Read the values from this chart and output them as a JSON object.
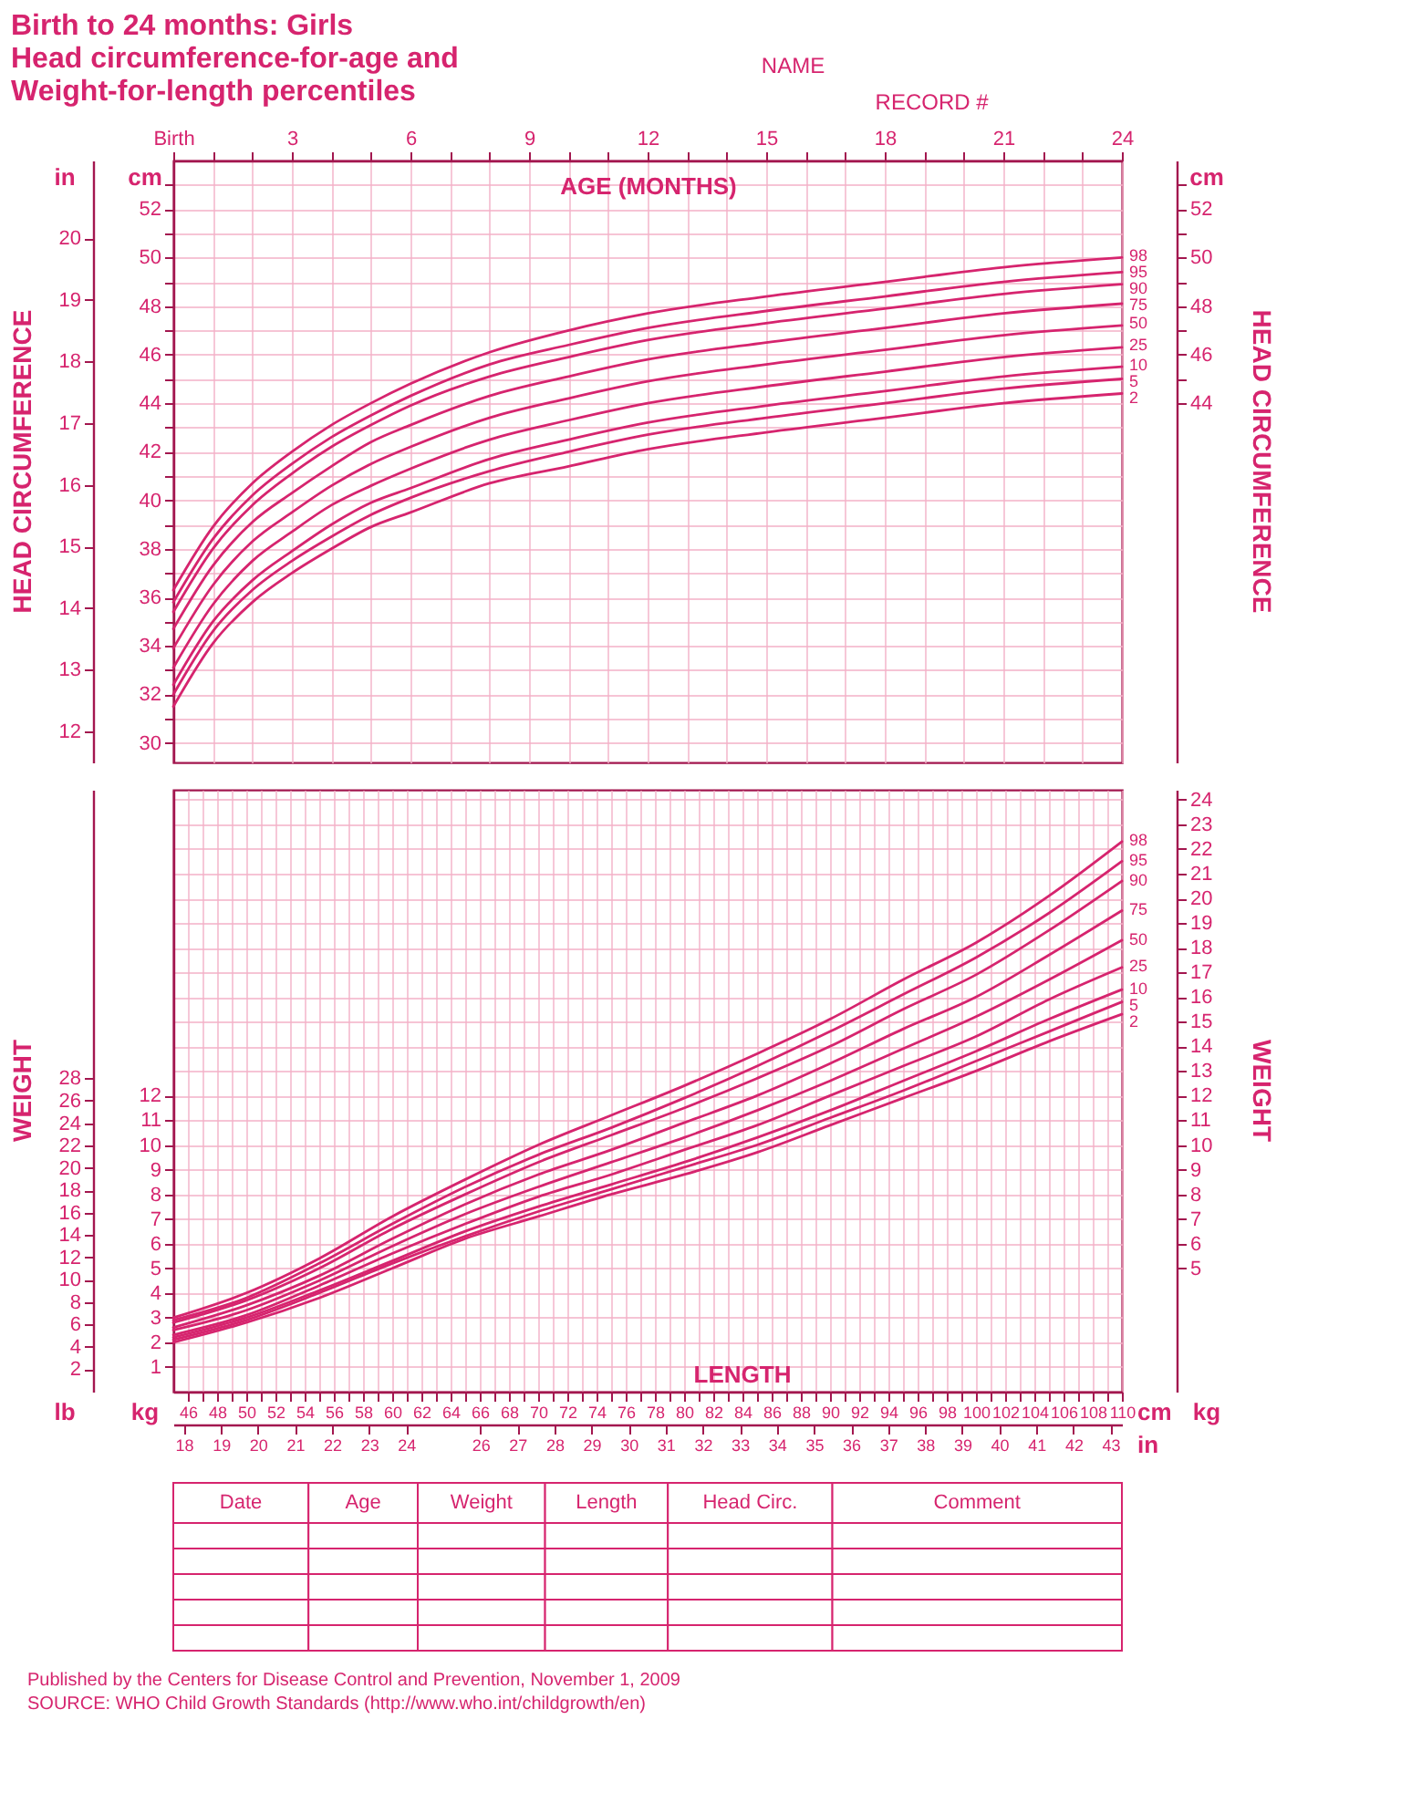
{
  "chart_data": [
    {
      "type": "line",
      "title": "Birth to 24 months: Girls\nHead circumference-for-age and\nWeight-for-length percentiles",
      "xlabel": "AGE (MONTHS)",
      "ylabel": "cm",
      "y2label": "cm",
      "y3label": "in",
      "annotations": [
        "HEAD CIRCUMFERENCE",
        "NAME",
        "RECORD #"
      ],
      "x": [
        0,
        1,
        2,
        3,
        4,
        5,
        6,
        8,
        10,
        12,
        15,
        18,
        21,
        24
      ],
      "series": [
        {
          "name": "2",
          "color": "#d6246e",
          "values": [
            31.5,
            34.1,
            35.8,
            37.0,
            38.0,
            38.9,
            39.5,
            40.7,
            41.4,
            42.1,
            42.8,
            43.4,
            44.0,
            44.4
          ]
        },
        {
          "name": "5",
          "color": "#d6246e",
          "values": [
            32.0,
            34.6,
            36.3,
            37.5,
            38.5,
            39.4,
            40.1,
            41.2,
            42.0,
            42.7,
            43.4,
            44.0,
            44.6,
            45.0
          ]
        },
        {
          "name": "10",
          "color": "#d6246e",
          "values": [
            32.4,
            35.0,
            36.7,
            37.9,
            39.0,
            39.9,
            40.5,
            41.7,
            42.5,
            43.2,
            43.9,
            44.5,
            45.1,
            45.5
          ]
        },
        {
          "name": "25",
          "color": "#d6246e",
          "values": [
            33.1,
            35.7,
            37.5,
            38.7,
            39.8,
            40.6,
            41.3,
            42.5,
            43.3,
            44.0,
            44.7,
            45.3,
            45.9,
            46.3
          ]
        },
        {
          "name": "50",
          "color": "#d6246e",
          "values": [
            33.9,
            36.5,
            38.3,
            39.5,
            40.6,
            41.5,
            42.2,
            43.4,
            44.2,
            44.9,
            45.6,
            46.2,
            46.8,
            47.2
          ]
        },
        {
          "name": "75",
          "color": "#d6246e",
          "values": [
            34.7,
            37.3,
            39.1,
            40.3,
            41.4,
            42.4,
            43.1,
            44.3,
            45.1,
            45.8,
            46.5,
            47.1,
            47.7,
            48.1
          ]
        },
        {
          "name": "90",
          "color": "#d6246e",
          "values": [
            35.4,
            38.0,
            39.8,
            41.1,
            42.2,
            43.1,
            43.9,
            45.1,
            45.9,
            46.6,
            47.3,
            47.9,
            48.5,
            48.9
          ]
        },
        {
          "name": "95",
          "color": "#d6246e",
          "values": [
            35.8,
            38.4,
            40.2,
            41.5,
            42.6,
            43.5,
            44.3,
            45.6,
            46.4,
            47.1,
            47.8,
            48.4,
            49.0,
            49.4
          ]
        },
        {
          "name": "98",
          "color": "#d6246e",
          "values": [
            36.3,
            38.9,
            40.7,
            42.0,
            43.1,
            44.0,
            44.8,
            46.1,
            47.0,
            47.7,
            48.4,
            49.0,
            49.6,
            50.0
          ]
        }
      ],
      "xlim": [
        0,
        24
      ],
      "xticks": [
        {
          "value": 0,
          "label": "Birth"
        },
        {
          "value": 1,
          "label": null
        },
        {
          "value": 2,
          "label": null
        },
        3,
        {
          "value": 4,
          "label": null
        },
        {
          "value": 5,
          "label": null
        },
        6,
        {
          "value": 7,
          "label": null
        },
        {
          "value": 8,
          "label": null
        },
        9,
        {
          "value": 10,
          "label": null
        },
        {
          "value": 11,
          "label": null
        },
        12,
        {
          "value": 13,
          "label": null
        },
        {
          "value": 14,
          "label": null
        },
        15,
        {
          "value": 16,
          "label": null
        },
        {
          "value": 17,
          "label": null
        },
        18,
        {
          "value": 19,
          "label": null
        },
        {
          "value": 20,
          "label": null
        },
        21,
        {
          "value": 22,
          "label": null
        },
        {
          "value": 23,
          "label": null
        },
        24
      ],
      "ylim": [
        29.2,
        54
      ],
      "yticks": [
        30,
        {
          "value": 31,
          "label": null
        },
        32,
        {
          "value": 33,
          "label": null
        },
        34,
        {
          "value": 35,
          "label": null
        },
        36,
        {
          "value": 37,
          "label": null
        },
        38,
        {
          "value": 39,
          "label": null
        },
        40,
        {
          "value": 41,
          "label": null
        },
        42,
        {
          "value": 43,
          "label": null
        },
        44,
        {
          "value": 45,
          "label": null
        },
        46,
        {
          "value": 47,
          "label": null
        },
        48,
        {
          "value": 49,
          "label": null
        },
        50,
        {
          "value": 51,
          "label": null
        },
        52,
        {
          "value": 53,
          "label": null
        }
      ],
      "y2lim": [
        29.2,
        54
      ],
      "y2ticks": [
        44,
        {
          "value": 45,
          "label": null
        },
        46,
        {
          "value": 47,
          "label": null
        },
        48,
        {
          "value": 49,
          "label": null
        },
        50,
        {
          "value": 51,
          "label": null
        },
        52,
        {
          "value": 53,
          "label": null
        }
      ],
      "y3lim": [
        11.496,
        21.26
      ],
      "y3ticks": [
        12,
        13,
        14,
        15,
        16,
        17,
        18,
        19,
        20
      ],
      "grid": true,
      "line_style": "solid"
    },
    {
      "type": "line",
      "xlabel": "cm",
      "x2label": "in",
      "ylabel": "kg",
      "y2label": "kg",
      "y3label": "lb",
      "annotations": [
        "WEIGHT",
        "LENGTH"
      ],
      "x": [
        45,
        50,
        55,
        60,
        65,
        70,
        75,
        80,
        85,
        90,
        95,
        100,
        105,
        110
      ],
      "series": [
        {
          "name": "2",
          "color": "#d6246e",
          "values": [
            2.0,
            2.8,
            3.8,
            5.0,
            6.2,
            7.1,
            8.0,
            8.8,
            9.7,
            10.8,
            11.9,
            13.0,
            14.2,
            15.3
          ]
        },
        {
          "name": "5",
          "color": "#d6246e",
          "values": [
            2.1,
            2.9,
            4.0,
            5.2,
            6.3,
            7.3,
            8.2,
            9.1,
            10.0,
            11.1,
            12.2,
            13.4,
            14.6,
            15.8
          ]
        },
        {
          "name": "10",
          "color": "#d6246e",
          "values": [
            2.2,
            3.0,
            4.1,
            5.3,
            6.5,
            7.5,
            8.4,
            9.3,
            10.3,
            11.4,
            12.6,
            13.8,
            15.1,
            16.3
          ]
        },
        {
          "name": "25",
          "color": "#d6246e",
          "values": [
            2.3,
            3.1,
            4.3,
            5.6,
            6.8,
            7.9,
            8.8,
            9.8,
            10.8,
            12.0,
            13.2,
            14.4,
            15.9,
            17.2
          ]
        },
        {
          "name": "50",
          "color": "#d6246e",
          "values": [
            2.5,
            3.3,
            4.5,
            5.9,
            7.2,
            8.3,
            9.3,
            10.3,
            11.4,
            12.6,
            13.9,
            15.2,
            16.7,
            18.3
          ]
        },
        {
          "name": "75",
          "color": "#d6246e",
          "values": [
            2.6,
            3.5,
            4.7,
            6.2,
            7.6,
            8.8,
            9.8,
            10.9,
            12.0,
            13.3,
            14.7,
            16.0,
            17.7,
            19.5
          ]
        },
        {
          "name": "90",
          "color": "#d6246e",
          "values": [
            2.8,
            3.7,
            5.0,
            6.6,
            8.0,
            9.3,
            10.4,
            11.5,
            12.7,
            14.0,
            15.5,
            16.9,
            18.7,
            20.7
          ]
        },
        {
          "name": "95",
          "color": "#d6246e",
          "values": [
            2.9,
            3.8,
            5.2,
            6.8,
            8.3,
            9.6,
            10.7,
            11.9,
            13.2,
            14.6,
            16.1,
            17.6,
            19.4,
            21.5
          ]
        },
        {
          "name": "98",
          "color": "#d6246e",
          "values": [
            3.0,
            4.0,
            5.4,
            7.1,
            8.6,
            10.0,
            11.2,
            12.4,
            13.7,
            15.1,
            16.7,
            18.2,
            20.1,
            22.3
          ]
        }
      ],
      "xlim": [
        45,
        110
      ],
      "xticks": [
        46,
        {
          "value": 47,
          "label": null
        },
        48,
        {
          "value": 49,
          "label": null
        },
        50,
        {
          "value": 51,
          "label": null
        },
        52,
        {
          "value": 53,
          "label": null
        },
        54,
        {
          "value": 55,
          "label": null
        },
        56,
        {
          "value": 57,
          "label": null
        },
        58,
        {
          "value": 59,
          "label": null
        },
        60,
        {
          "value": 61,
          "label": null
        },
        62,
        {
          "value": 63,
          "label": null
        },
        64,
        {
          "value": 65,
          "label": null
        },
        66,
        {
          "value": 67,
          "label": null
        },
        68,
        {
          "value": 69,
          "label": null
        },
        70,
        {
          "value": 71,
          "label": null
        },
        72,
        {
          "value": 73,
          "label": null
        },
        74,
        {
          "value": 75,
          "label": null
        },
        76,
        {
          "value": 77,
          "label": null
        },
        78,
        {
          "value": 79,
          "label": null
        },
        80,
        {
          "value": 81,
          "label": null
        },
        82,
        {
          "value": 83,
          "label": null
        },
        84,
        {
          "value": 85,
          "label": null
        },
        86,
        {
          "value": 87,
          "label": null
        },
        88,
        {
          "value": 89,
          "label": null
        },
        90,
        {
          "value": 91,
          "label": null
        },
        92,
        {
          "value": 93,
          "label": null
        },
        94,
        {
          "value": 95,
          "label": null
        },
        96,
        {
          "value": 97,
          "label": null
        },
        98,
        {
          "value": 99,
          "label": null
        },
        100,
        {
          "value": 101,
          "label": null
        },
        102,
        {
          "value": 103,
          "label": null
        },
        104,
        {
          "value": 105,
          "label": null
        },
        106,
        {
          "value": 107,
          "label": null
        },
        108,
        {
          "value": 109,
          "label": null
        },
        110
      ],
      "x2lim": [
        17.717,
        43.307
      ],
      "x2ticks": [
        18,
        19,
        20,
        21,
        22,
        23,
        24,
        26,
        27,
        28,
        29,
        30,
        31,
        32,
        33,
        34,
        35,
        36,
        37,
        38,
        39,
        40,
        41,
        42,
        43
      ],
      "ylim": [
        0,
        24.4
      ],
      "yticks": [
        1,
        2,
        3,
        4,
        5,
        6,
        7,
        8,
        9,
        10,
        11,
        12
      ],
      "y2lim": [
        0,
        24.4
      ],
      "y2ticks": [
        5,
        6,
        7,
        8,
        9,
        10,
        11,
        12,
        13,
        14,
        15,
        16,
        17,
        18,
        19,
        20,
        21,
        22,
        23,
        24
      ],
      "y3lim": [
        0,
        53.79
      ],
      "y3ticks": [
        2,
        4,
        6,
        8,
        10,
        12,
        14,
        16,
        18,
        20,
        22,
        24,
        26,
        28
      ],
      "grid": true,
      "line_style": "solid"
    },
    {
      "type": "other",
      "categories": [
        "Date",
        "Age",
        "Weight",
        "Length",
        "Head Circ.",
        "Comment"
      ],
      "annotations": [
        "Published by the Centers for Disease Control and Prevention, November 1, 2009",
        "SOURCE: WHO Child Growth Standards (http://www.who.int/childgrowth/en)"
      ]
    }
  ]
}
